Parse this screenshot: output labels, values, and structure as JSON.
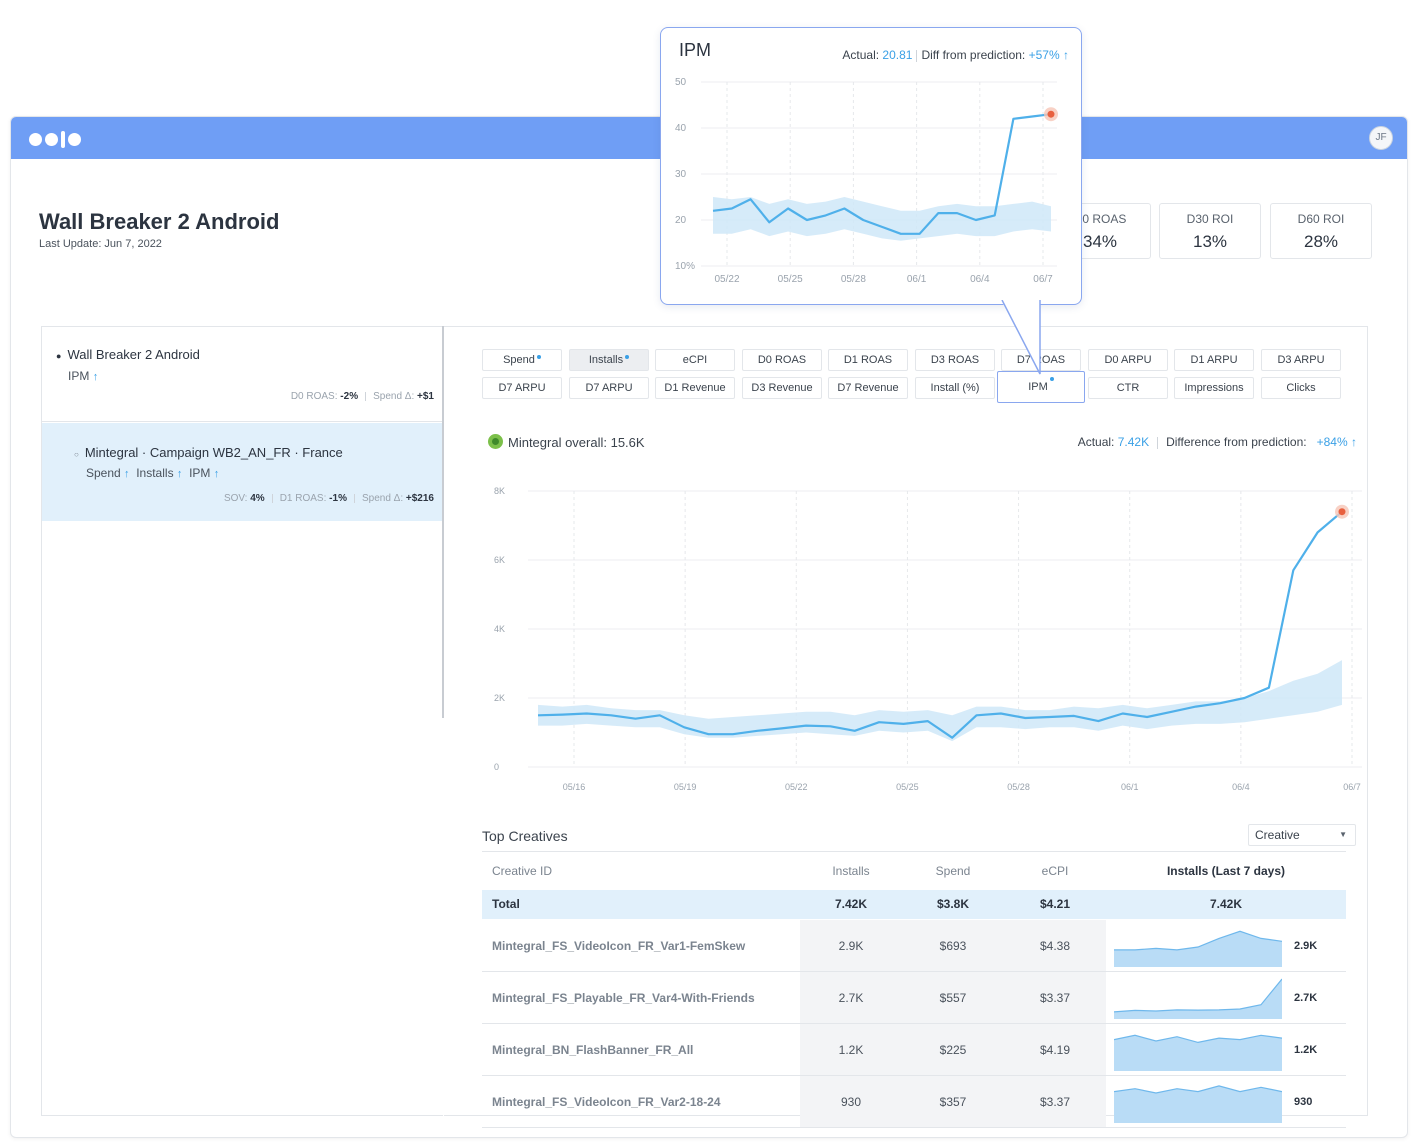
{
  "app": {
    "avatar_initials": "JF",
    "page_title": "Wall Breaker 2 Android",
    "last_update": "Last Update: Jun 7, 2022",
    "accent_color": "#6f9ef5",
    "highlight_color": "#3aa0e6"
  },
  "kpis": [
    {
      "label": "D0 ROAS",
      "value": "34%"
    },
    {
      "label": "D30 ROI",
      "value": "13%"
    },
    {
      "label": "D60 ROI",
      "value": "28%"
    }
  ],
  "tree": {
    "app_item": {
      "title": "Wall Breaker 2 Android",
      "metric": "IPM",
      "stats": [
        {
          "label": "D0 ROAS:",
          "value": "-2%"
        },
        {
          "label": "Spend Δ:",
          "value": "+$1"
        }
      ]
    },
    "campaign_item": {
      "title": "Mintegral · Campaign WB2_AN_FR · France",
      "metrics": [
        "Spend",
        "Installs",
        "IPM"
      ],
      "stats": [
        {
          "label": "SOV:",
          "value": "4%"
        },
        {
          "label": "D1 ROAS:",
          "value": "-1%"
        },
        {
          "label": "Spend Δ:",
          "value": "+$216"
        }
      ]
    }
  },
  "metric_chips": [
    {
      "label": "Spend",
      "dot": true,
      "state": "normal"
    },
    {
      "label": "Installs",
      "dot": true,
      "state": "active"
    },
    {
      "label": "eCPI",
      "dot": false,
      "state": "normal"
    },
    {
      "label": "D0 ROAS",
      "dot": false,
      "state": "normal"
    },
    {
      "label": "D1 ROAS",
      "dot": false,
      "state": "normal"
    },
    {
      "label": "D3 ROAS",
      "dot": false,
      "state": "normal"
    },
    {
      "label": "D7 ROAS",
      "dot": false,
      "state": "normal"
    },
    {
      "label": "D0 ARPU",
      "dot": false,
      "state": "normal"
    },
    {
      "label": "D1 ARPU",
      "dot": false,
      "state": "normal"
    },
    {
      "label": "D3 ARPU",
      "dot": false,
      "state": "normal"
    },
    {
      "label": "D7 ARPU",
      "dot": false,
      "state": "normal"
    },
    {
      "label": "D7 ARPU",
      "dot": false,
      "state": "normal"
    },
    {
      "label": "D1 Revenue",
      "dot": false,
      "state": "normal"
    },
    {
      "label": "D3 Revenue",
      "dot": false,
      "state": "normal"
    },
    {
      "label": "D7 Revenue",
      "dot": false,
      "state": "normal"
    },
    {
      "label": "Install (%)",
      "dot": false,
      "state": "normal"
    },
    {
      "label": "IPM",
      "dot": true,
      "state": "selected"
    },
    {
      "label": "CTR",
      "dot": false,
      "state": "normal"
    },
    {
      "label": "Impressions",
      "dot": false,
      "state": "normal"
    },
    {
      "label": "Clicks",
      "dot": false,
      "state": "normal"
    }
  ],
  "main_chart_header": {
    "network_label": "Mintegral overall: 15.6K",
    "actual_label": "Actual:",
    "actual_value": "7.42K",
    "diff_label": "Difference from prediction:",
    "diff_value": "+84%"
  },
  "popup": {
    "title": "IPM",
    "actual_label": "Actual:",
    "actual_value": "20.81",
    "diff_label": "Diff from prediction:",
    "diff_value": "+57%"
  },
  "chart_data": [
    {
      "type": "line",
      "title": "Mintegral overall: 15.6K",
      "xlabel": "",
      "ylabel": "",
      "x_ticks": [
        "05/16",
        "05/19",
        "05/22",
        "05/25",
        "05/28",
        "06/1",
        "06/4",
        "06/7"
      ],
      "y_ticks": [
        "0",
        "2K",
        "4K",
        "6K",
        "8K"
      ],
      "ylim": [
        0,
        8000
      ],
      "grid": true,
      "series": [
        {
          "kind": "line",
          "values": [
            1500,
            1520,
            1550,
            1500,
            1400,
            1500,
            1150,
            950,
            950,
            1050,
            1120,
            1200,
            1180,
            1050,
            1300,
            1250,
            1330,
            850,
            1500,
            1550,
            1420,
            1450,
            1480,
            1330,
            1550,
            1450,
            1600,
            1750,
            1850,
            2000,
            2300,
            5700,
            6800,
            7400
          ]
        },
        {
          "kind": "band_upper",
          "values": [
            1800,
            1750,
            1800,
            1700,
            1650,
            1650,
            1500,
            1400,
            1450,
            1500,
            1550,
            1600,
            1600,
            1500,
            1650,
            1600,
            1650,
            1500,
            1750,
            1750,
            1650,
            1650,
            1750,
            1700,
            1800,
            1700,
            1800,
            1900,
            1900,
            2000,
            2200,
            2500,
            2700,
            3100
          ]
        },
        {
          "kind": "band_lower",
          "values": [
            1200,
            1200,
            1250,
            1200,
            1150,
            1150,
            950,
            850,
            850,
            900,
            950,
            1000,
            950,
            900,
            1050,
            1000,
            1050,
            750,
            1150,
            1150,
            1100,
            1150,
            1150,
            1050,
            1200,
            1100,
            1200,
            1250,
            1250,
            1300,
            1400,
            1500,
            1600,
            1800
          ]
        }
      ]
    },
    {
      "type": "line",
      "title": "IPM",
      "xlabel": "",
      "ylabel": "",
      "x_ticks": [
        "05/22",
        "05/25",
        "05/28",
        "06/1",
        "06/4",
        "06/7"
      ],
      "y_ticks": [
        "10%",
        "20",
        "30",
        "40",
        "50"
      ],
      "ylim": [
        10,
        50
      ],
      "grid": true,
      "series": [
        {
          "kind": "line",
          "values": [
            22,
            22.5,
            24.5,
            19.5,
            22.5,
            20,
            21,
            22.5,
            20,
            18.5,
            17,
            17,
            21.5,
            21.5,
            20,
            21,
            42,
            42.5,
            43
          ]
        },
        {
          "kind": "band_upper",
          "values": [
            25,
            24.5,
            25,
            23.5,
            24.5,
            23.5,
            24,
            25,
            24,
            23,
            22,
            22,
            23,
            23.5,
            23,
            23,
            23.5,
            24,
            23
          ]
        },
        {
          "kind": "band_lower",
          "values": [
            17,
            17,
            18,
            16.5,
            17.5,
            16.5,
            17,
            18,
            17,
            16,
            15.5,
            16,
            16.5,
            17,
            16.5,
            16.5,
            17.5,
            18,
            17.5
          ]
        }
      ]
    }
  ],
  "top_creatives": {
    "title": "Top Creatives",
    "select_value": "Creative",
    "columns": [
      "Creative ID",
      "Installs",
      "Spend",
      "eCPI",
      "Installs (Last 7 days)"
    ],
    "total": {
      "id": "Total",
      "installs": "7.42K",
      "spend": "$3.8K",
      "ecpi": "$4.21",
      "last7": "7.42K"
    },
    "rows": [
      {
        "id": "Mintegral_FS_VideoIcon_FR_Var1-FemSkew",
        "installs": "2.9K",
        "spend": "$693",
        "ecpi": "$4.38",
        "last7": "2.9K",
        "spark": [
          6,
          6,
          6.5,
          6,
          7,
          10,
          12.5,
          10,
          9
        ]
      },
      {
        "id": "Mintegral_FS_Playable_FR_Var4-With-Friends",
        "installs": "2.7K",
        "spend": "$557",
        "ecpi": "$3.37",
        "last7": "2.7K",
        "spark": [
          2.5,
          3,
          2.8,
          3.2,
          3.1,
          3.2,
          3.5,
          5,
          14
        ]
      },
      {
        "id": "Mintegral_BN_FlashBanner_FR_All",
        "installs": "1.2K",
        "spend": "$225",
        "ecpi": "$4.19",
        "last7": "1.2K",
        "spark": [
          11,
          12.5,
          10.5,
          12,
          10,
          11.5,
          11,
          12.5,
          11.5
        ]
      },
      {
        "id": "Mintegral_FS_VideoIcon_FR_Var2-18-24",
        "installs": "930",
        "spend": "$357",
        "ecpi": "$3.37",
        "last7": "930",
        "spark": [
          11,
          12,
          10.5,
          12,
          11,
          13,
          11,
          12.5,
          11
        ]
      }
    ]
  }
}
